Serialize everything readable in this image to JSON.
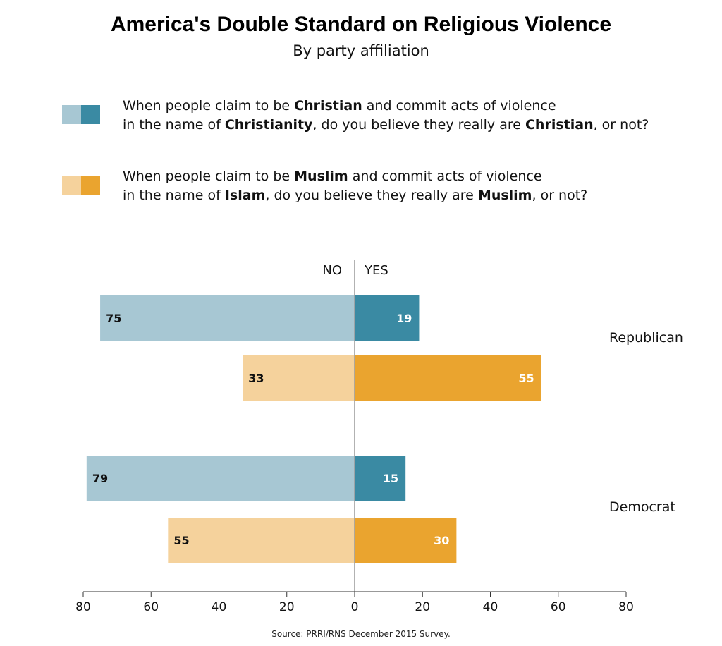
{
  "title": "America's Double Standard on Religious Violence",
  "subtitle": "By party affiliation",
  "legend": [
    {
      "colors": [
        "#a7c7d3",
        "#3a8aa3"
      ],
      "line1": [
        {
          "t": "When people claim to be ",
          "b": false
        },
        {
          "t": "Christian",
          "b": true
        },
        {
          "t": " and commit acts of violence",
          "b": false
        }
      ],
      "line2": [
        {
          "t": "in the name of ",
          "b": false
        },
        {
          "t": "Christianity",
          "b": true
        },
        {
          "t": ", do you believe they really are ",
          "b": false
        },
        {
          "t": "Christian",
          "b": true
        },
        {
          "t": ", or not?",
          "b": false
        }
      ]
    },
    {
      "colors": [
        "#f5d29c",
        "#eaa42f"
      ],
      "line1": [
        {
          "t": "When people claim to be ",
          "b": false
        },
        {
          "t": "Muslim",
          "b": true
        },
        {
          "t": " and commit acts of violence",
          "b": false
        }
      ],
      "line2": [
        {
          "t": "in the name of ",
          "b": false
        },
        {
          "t": "Islam",
          "b": true
        },
        {
          "t": ", do you believe they really are ",
          "b": false
        },
        {
          "t": "Muslim",
          "b": true
        },
        {
          "t": ", or not?",
          "b": false
        }
      ]
    }
  ],
  "source": "Source: PRRI/RNS December 2015 Survey.",
  "chart_data": {
    "type": "bar",
    "orientation": "horizontal-diverging",
    "side_labels": {
      "left": "NO",
      "right": "YES"
    },
    "groups": [
      {
        "label": "Republican",
        "bars": [
          {
            "series": "Christian",
            "no": 75,
            "yes": 19
          },
          {
            "series": "Muslim",
            "no": 33,
            "yes": 55
          }
        ]
      },
      {
        "label": "Democrat",
        "bars": [
          {
            "series": "Christian",
            "no": 79,
            "yes": 15
          },
          {
            "series": "Muslim",
            "no": 55,
            "yes": 30
          }
        ]
      }
    ],
    "x_ticks": [
      "80",
      "60",
      "40",
      "20",
      "0",
      "20",
      "40",
      "60",
      "80"
    ],
    "xlim": [
      -80,
      80
    ],
    "colors": {
      "Christian": {
        "no": "#a7c7d3",
        "yes": "#3a8aa3"
      },
      "Muslim": {
        "no": "#f5d29c",
        "yes": "#eaa42f"
      }
    },
    "grid": false,
    "legend_position": "top"
  }
}
